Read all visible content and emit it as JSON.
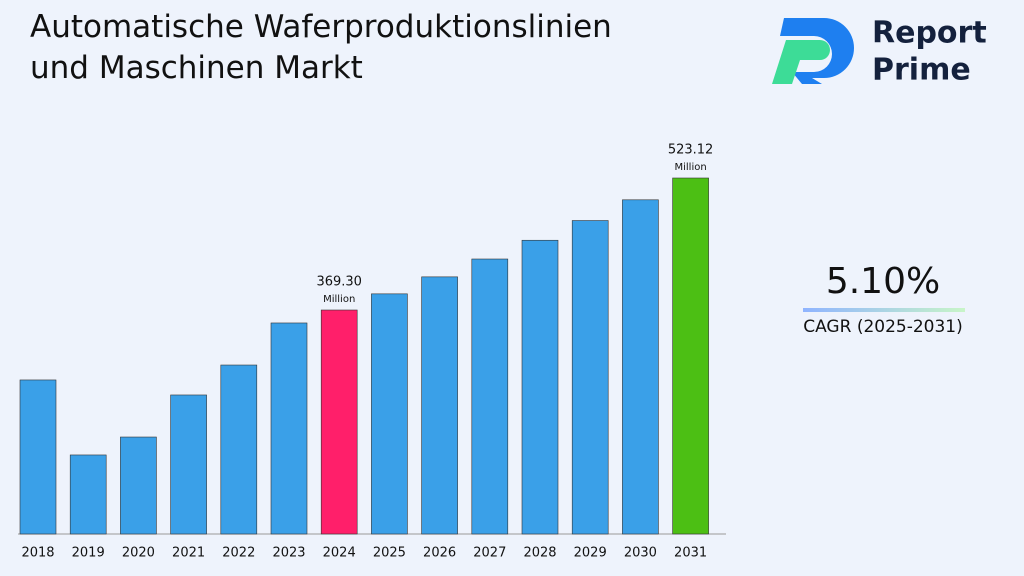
{
  "chart_data": {
    "type": "bar",
    "title": "Automatische Waferproduktionslinien und Maschinen Markt",
    "categories": [
      "2018",
      "2019",
      "2020",
      "2021",
      "2022",
      "2023",
      "2024",
      "2025",
      "2026",
      "2027",
      "2028",
      "2029",
      "2030",
      "2031"
    ],
    "values": [
      287.8,
      200.4,
      221.3,
      270.3,
      305.2,
      354.2,
      369.3,
      388.13,
      407.93,
      428.73,
      450.59,
      473.57,
      497.72,
      523.12
    ],
    "value_labels": [
      null,
      null,
      null,
      null,
      null,
      null,
      "369.30",
      null,
      null,
      null,
      null,
      null,
      null,
      "523.12"
    ],
    "value_unit": "Million",
    "colors": [
      "#3aa0e8",
      "#3aa0e8",
      "#3aa0e8",
      "#3aa0e8",
      "#3aa0e8",
      "#3aa0e8",
      "#ff1f6a",
      "#3aa0e8",
      "#3aa0e8",
      "#3aa0e8",
      "#3aa0e8",
      "#3aa0e8",
      "#3aa0e8",
      "#4cbf14"
    ],
    "ylim": [
      108.3,
      574.4
    ]
  },
  "brand": {
    "line1": "Report",
    "line2": "Prime"
  },
  "cagr": {
    "value": "5.10%",
    "label": "CAGR (2025-2031)"
  }
}
